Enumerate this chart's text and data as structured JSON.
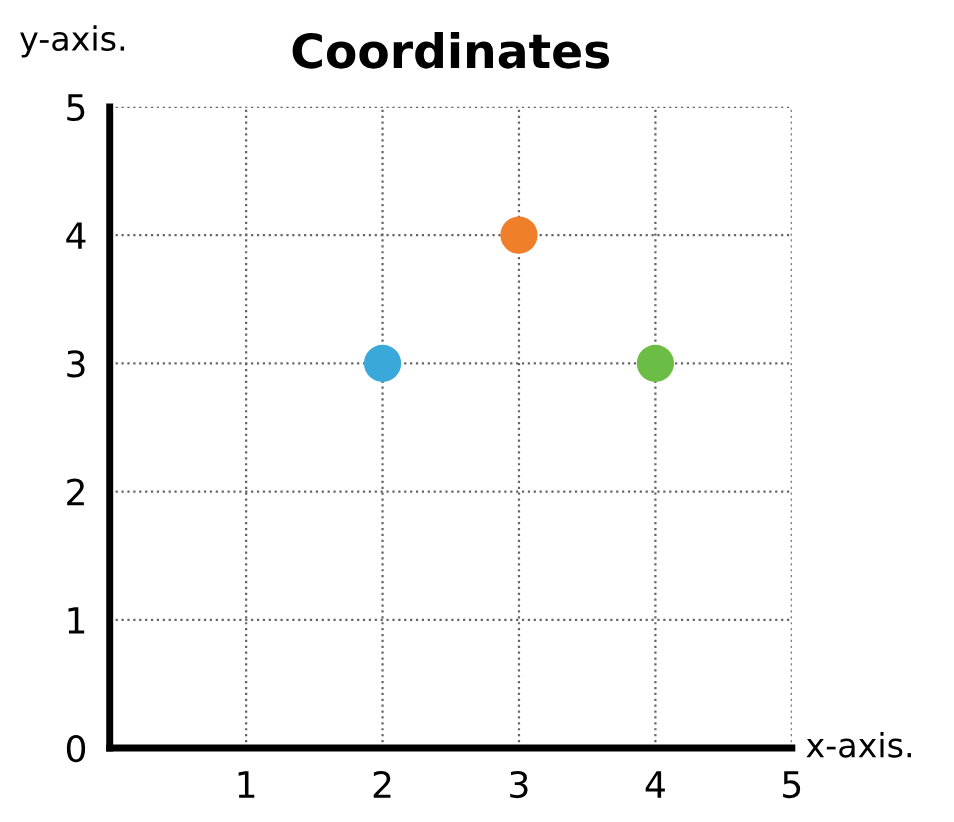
{
  "chart_data": {
    "type": "scatter",
    "title": "Coordinates",
    "xlabel": "x-axis.",
    "ylabel": "y-axis.",
    "x": [
      2,
      3,
      4
    ],
    "values": [
      3,
      4,
      3
    ],
    "colors": [
      "#3aa8d8",
      "#f07f2a",
      "#6cbd45"
    ],
    "xlim": [
      0,
      5
    ],
    "ylim": [
      0,
      5
    ],
    "xticks": [
      1,
      2,
      3,
      4,
      5
    ],
    "yticks": [
      0,
      1,
      2,
      3,
      4,
      5
    ],
    "grid": true,
    "line_style": "dotted",
    "marker": "circle"
  }
}
